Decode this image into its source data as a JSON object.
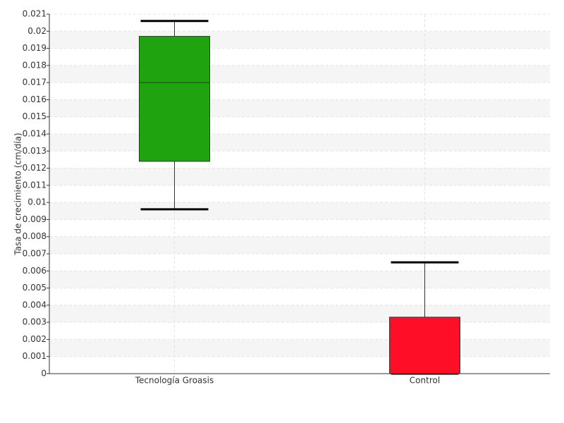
{
  "chart_data": {
    "type": "box",
    "ylabel": "Tasa de crecimiento (cm/día)",
    "categories": [
      "Tecnología Groasis",
      "Control"
    ],
    "boxes": [
      {
        "min": 0.0096,
        "q1": 0.0124,
        "median": 0.017,
        "q3": 0.0197,
        "max": 0.0206,
        "color": "#1fa30f"
      },
      {
        "min": 0,
        "q1": 0,
        "median": 0,
        "q3": 0.0033,
        "max": 0.0065,
        "color": "#ff0f27"
      }
    ],
    "ylim": [
      0,
      0.021
    ],
    "yticks": [
      0,
      0.001,
      0.002,
      0.003,
      0.004,
      0.005,
      0.006,
      0.007,
      0.008,
      0.009,
      0.01,
      0.011,
      0.012,
      0.013,
      0.014,
      0.015,
      0.016,
      0.017,
      0.018,
      0.019,
      0.02,
      0.021
    ],
    "grid": true
  }
}
